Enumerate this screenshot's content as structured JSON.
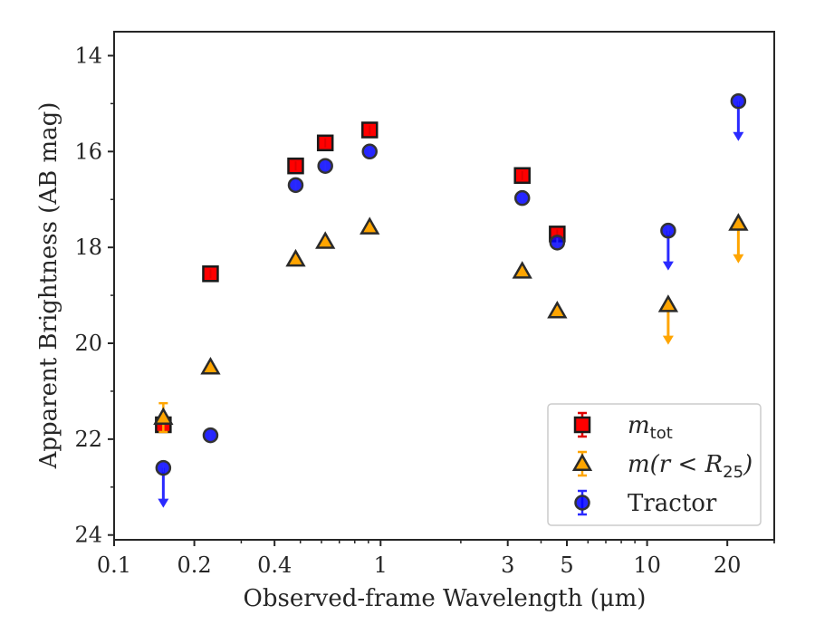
{
  "chart_data": {
    "type": "scatter",
    "xlabel": "Observed-frame Wavelength (μm)",
    "ylabel": "Apparent Brightness (AB mag)",
    "xscale": "log",
    "yaxis_inverted": true,
    "xlim": [
      0.1,
      30
    ],
    "ylim": [
      24.1,
      13.5
    ],
    "xticks": [
      {
        "value": 0.1,
        "label": "0.1"
      },
      {
        "value": 0.2,
        "label": "0.2"
      },
      {
        "value": 0.4,
        "label": "0.4"
      },
      {
        "value": 1,
        "label": "1"
      },
      {
        "value": 3,
        "label": "3"
      },
      {
        "value": 5,
        "label": "5"
      },
      {
        "value": 10,
        "label": "10"
      },
      {
        "value": 20,
        "label": "20"
      }
    ],
    "yticks": [
      14,
      16,
      18,
      20,
      22,
      24
    ],
    "legend_position": "lower-right",
    "series": [
      {
        "name": "m_tot",
        "legend_main": "m",
        "legend_sub": "tot",
        "marker": "square",
        "color": "#ff0000",
        "edgecolor": "#1a1a1a",
        "errcolor": "#e00000",
        "points": [
          {
            "x": 0.153,
            "y": 21.7
          },
          {
            "x": 0.23,
            "y": 18.55
          },
          {
            "x": 0.48,
            "y": 16.3
          },
          {
            "x": 0.62,
            "y": 15.82
          },
          {
            "x": 0.91,
            "y": 15.55
          },
          {
            "x": 3.4,
            "y": 16.5
          },
          {
            "x": 4.6,
            "y": 17.72
          }
        ]
      },
      {
        "name": "m(r<R25)",
        "legend_main": "m(r < R",
        "legend_sub": "25",
        "legend_tail": ")",
        "marker": "triangle",
        "color": "#ffa500",
        "edgecolor": "#2a2a2a",
        "errcolor": "#ffa500",
        "points": [
          {
            "x": 0.153,
            "y": 21.55,
            "yerr": 0.3
          },
          {
            "x": 0.23,
            "y": 20.5
          },
          {
            "x": 0.48,
            "y": 18.25
          },
          {
            "x": 0.62,
            "y": 17.88
          },
          {
            "x": 0.91,
            "y": 17.58
          },
          {
            "x": 3.4,
            "y": 18.5
          },
          {
            "x": 4.6,
            "y": 19.33
          },
          {
            "x": 12.0,
            "y": 19.2,
            "upper_limit": true
          },
          {
            "x": 22.0,
            "y": 17.5,
            "upper_limit": true
          }
        ]
      },
      {
        "name": "Tractor",
        "legend_main": "Tractor",
        "marker": "circle",
        "color": "#0000ff",
        "edgecolor": "#333333",
        "errcolor": "#2a2aff",
        "points": [
          {
            "x": 0.153,
            "y": 22.6,
            "upper_limit": true
          },
          {
            "x": 0.23,
            "y": 21.92
          },
          {
            "x": 0.48,
            "y": 16.7
          },
          {
            "x": 0.62,
            "y": 16.3
          },
          {
            "x": 0.91,
            "y": 16.0
          },
          {
            "x": 3.4,
            "y": 16.97
          },
          {
            "x": 4.6,
            "y": 17.9
          },
          {
            "x": 12.0,
            "y": 17.65,
            "upper_limit": true
          },
          {
            "x": 22.0,
            "y": 14.95,
            "upper_limit": true
          }
        ]
      }
    ]
  }
}
